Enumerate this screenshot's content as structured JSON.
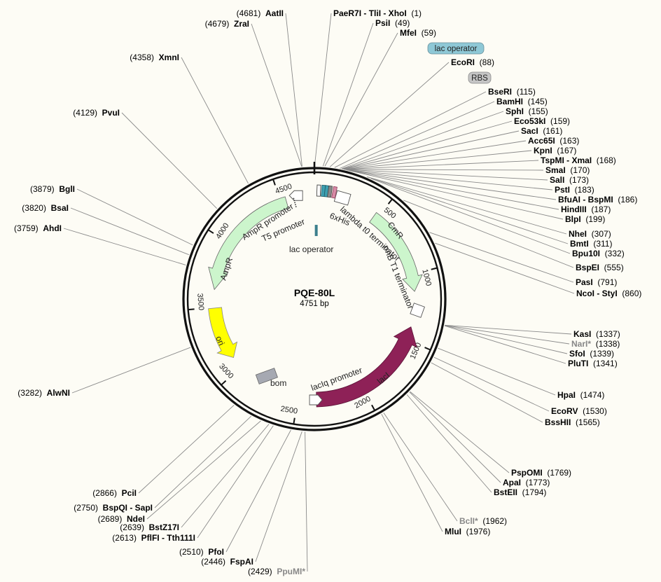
{
  "plasmid": {
    "name": "PQE-80L",
    "length_label": "4751 bp",
    "length": 4751
  },
  "ticks": [
    "500",
    "1000",
    "1500",
    "2000",
    "2500",
    "3000",
    "3500",
    "4000",
    "4500"
  ],
  "features": {
    "ampr": "AmpR",
    "ampr_promoter": "AmpR promoter",
    "t5_promoter": "T5 promoter",
    "lac_operator": "lac operator",
    "his": "6xHis",
    "lambda_t0": "lambda t0 terminator",
    "cmr": "CmR",
    "rrnb_t1": "rrnB T1 terminator",
    "laci": "lacI",
    "laciq_promoter": "lacIq promoter",
    "bom": "bom",
    "ori": "ori"
  },
  "pill_labels": {
    "lac_operator": "lac operator",
    "rbs": "RBS"
  },
  "colors": {
    "ampr": "#ccf5cc",
    "cmr": "#ccf5cc",
    "laci": "#8e2157",
    "ori": "#ffff00",
    "bom": "#a6a9b2",
    "lac_operator_pill": "#8ec8d6",
    "rbs_pill": "#c5c5c5"
  },
  "sites_right": [
    {
      "name": "PaeR7I - TliI - XhoI",
      "pos": "(1)"
    },
    {
      "name": "PsiI",
      "pos": "(49)"
    },
    {
      "name": "MfeI",
      "pos": "(59)"
    },
    {
      "name": "EcoRI",
      "pos": "(88)"
    },
    {
      "name": "BseRI",
      "pos": "(115)"
    },
    {
      "name": "BamHI",
      "pos": "(145)"
    },
    {
      "name": "SphI",
      "pos": "(155)"
    },
    {
      "name": "Eco53kI",
      "pos": "(159)"
    },
    {
      "name": "SacI",
      "pos": "(161)"
    },
    {
      "name": "Acc65I",
      "pos": "(163)"
    },
    {
      "name": "KpnI",
      "pos": "(167)"
    },
    {
      "name": "TspMI - XmaI",
      "pos": "(168)"
    },
    {
      "name": "SmaI",
      "pos": "(170)"
    },
    {
      "name": "SalI",
      "pos": "(173)"
    },
    {
      "name": "PstI",
      "pos": "(183)"
    },
    {
      "name": "BfuAI - BspMI",
      "pos": "(186)"
    },
    {
      "name": "HindIII",
      "pos": "(187)"
    },
    {
      "name": "BlpI",
      "pos": "(199)"
    },
    {
      "name": "NheI",
      "pos": "(307)"
    },
    {
      "name": "BmtI",
      "pos": "(311)"
    },
    {
      "name": "Bpu10I",
      "pos": "(332)"
    },
    {
      "name": "BspEI",
      "pos": "(555)"
    },
    {
      "name": "PasI",
      "pos": "(791)"
    },
    {
      "name": "NcoI - StyI",
      "pos": "(860)"
    },
    {
      "name": "KasI",
      "pos": "(1337)"
    },
    {
      "name": "NarI*",
      "pos": "(1338)"
    },
    {
      "name": "SfoI",
      "pos": "(1339)"
    },
    {
      "name": "PluTI",
      "pos": "(1341)"
    },
    {
      "name": "HpaI",
      "pos": "(1474)"
    },
    {
      "name": "EcoRV",
      "pos": "(1530)"
    },
    {
      "name": "BssHII",
      "pos": "(1565)"
    },
    {
      "name": "PspOMI",
      "pos": "(1769)"
    },
    {
      "name": "ApaI",
      "pos": "(1773)"
    },
    {
      "name": "BstEII",
      "pos": "(1794)"
    },
    {
      "name": "BclI*",
      "pos": "(1962)"
    },
    {
      "name": "MluI",
      "pos": "(1976)"
    }
  ],
  "sites_left": [
    {
      "name": "AatII",
      "pos": "(4681)"
    },
    {
      "name": "ZraI",
      "pos": "(4679)"
    },
    {
      "name": "XmnI",
      "pos": "(4358)"
    },
    {
      "name": "PvuI",
      "pos": "(4129)"
    },
    {
      "name": "BglI",
      "pos": "(3879)"
    },
    {
      "name": "BsaI",
      "pos": "(3820)"
    },
    {
      "name": "AhdI",
      "pos": "(3759)"
    },
    {
      "name": "AlwNI",
      "pos": "(3282)"
    },
    {
      "name": "PciI",
      "pos": "(2866)"
    },
    {
      "name": "BspQI - SapI",
      "pos": "(2750)"
    },
    {
      "name": "NdeI",
      "pos": "(2689)"
    },
    {
      "name": "BstZ17I",
      "pos": "(2639)"
    },
    {
      "name": "PflFI - Tth111I",
      "pos": "(2613)"
    },
    {
      "name": "PfoI",
      "pos": "(2510)"
    },
    {
      "name": "FspAI",
      "pos": "(2446)"
    },
    {
      "name": "PpuMI*",
      "pos": "(2429)"
    }
  ]
}
